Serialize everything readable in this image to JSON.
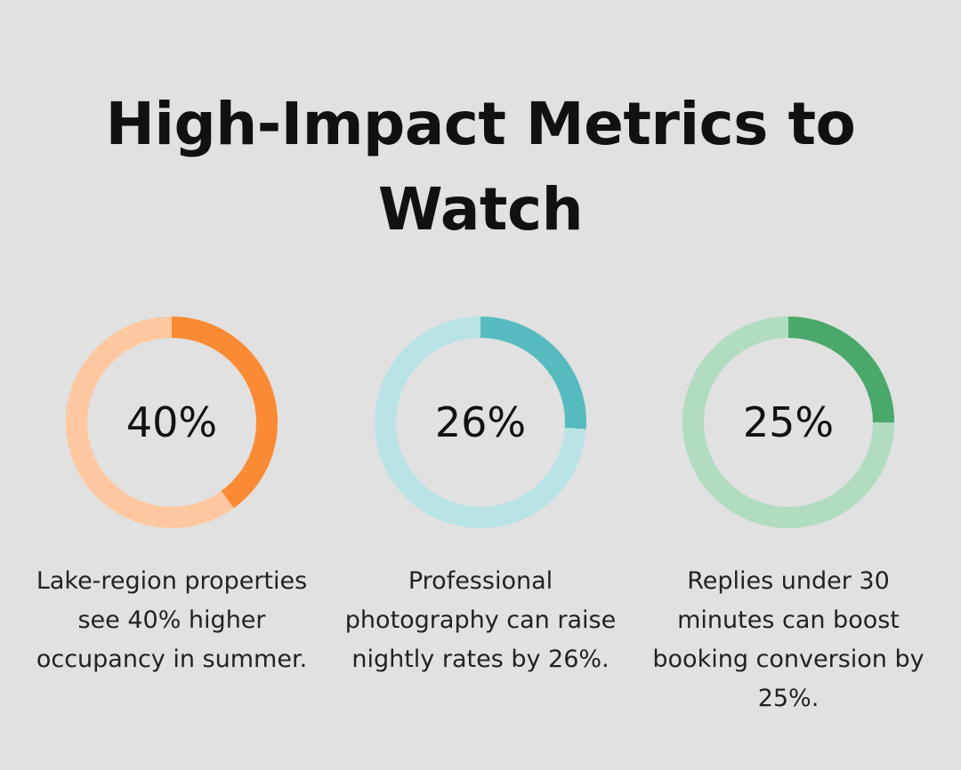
{
  "title_line1": "High-Impact Metrics to",
  "title_line2": "Watch",
  "chart_data": {
    "type": "pie",
    "variant": "donut",
    "series": [
      {
        "label": "40%",
        "value": 40,
        "color": "#fb8a35",
        "track_color": "#ffc8a0",
        "caption": "Lake-region properties see 40% higher occupancy in summer."
      },
      {
        "label": "26%",
        "value": 26,
        "color": "#56bbbf",
        "track_color": "#b9e3e5",
        "caption": "Professional photography can raise nightly rates by 26%."
      },
      {
        "label": "25%",
        "value": 25,
        "color": "#4aa86b",
        "track_color": "#b2dcbf",
        "caption": "Replies under 30 minutes can boost booking conversion by 25%."
      }
    ]
  }
}
